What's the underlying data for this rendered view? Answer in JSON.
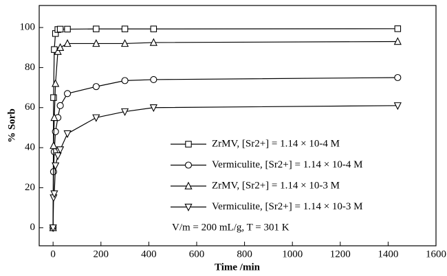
{
  "chart_data": {
    "type": "line",
    "x_label": "Time /min",
    "y_label": "% Sorb",
    "xlim": [
      -58,
      1600
    ],
    "ylim": [
      -9,
      111
    ],
    "xticks": [
      0,
      200,
      400,
      600,
      800,
      1000,
      1200,
      1400,
      1600
    ],
    "yticks": [
      0,
      20,
      40,
      60,
      80,
      100
    ],
    "annotation": "V/m = 200 mL/g, T = 301 K",
    "series": [
      {
        "name": "ZrMV, [Sr2+] = 1.14 × 10-4 M",
        "color": "#000000",
        "marker": "square",
        "x": [
          0,
          2,
          5,
          10,
          20,
          30,
          60,
          180,
          300,
          420,
          1440
        ],
        "values": [
          0,
          65,
          89,
          97,
          99,
          99.2,
          99.2,
          99.3,
          99.3,
          99.3,
          99.4
        ]
      },
      {
        "name": "Vermiculite, [Sr2+] = 1.14 × 10-4 M",
        "color": "#000000",
        "marker": "circle",
        "x": [
          0,
          2,
          5,
          10,
          20,
          30,
          60,
          180,
          300,
          420,
          1440
        ],
        "values": [
          0,
          28,
          38,
          48,
          55,
          61,
          67,
          70.5,
          73.5,
          74,
          75
        ]
      },
      {
        "name": "ZrMV, [Sr2+] = 1.14 × 10-3 M",
        "color": "#000000",
        "marker": "triangle-up",
        "x": [
          0,
          2,
          5,
          10,
          20,
          30,
          60,
          180,
          300,
          420,
          1440
        ],
        "values": [
          0,
          41,
          55,
          72,
          88,
          90,
          92,
          92,
          92,
          92.5,
          93
        ]
      },
      {
        "name": "Vermiculite, [Sr2+] = 1.14 × 10-3 M",
        "color": "#000000",
        "marker": "triangle-down",
        "x": [
          0,
          2,
          5,
          10,
          20,
          30,
          60,
          180,
          300,
          420,
          1440
        ],
        "values": [
          0,
          15,
          17,
          31,
          36,
          39,
          47,
          55,
          58,
          60,
          61
        ]
      }
    ]
  }
}
